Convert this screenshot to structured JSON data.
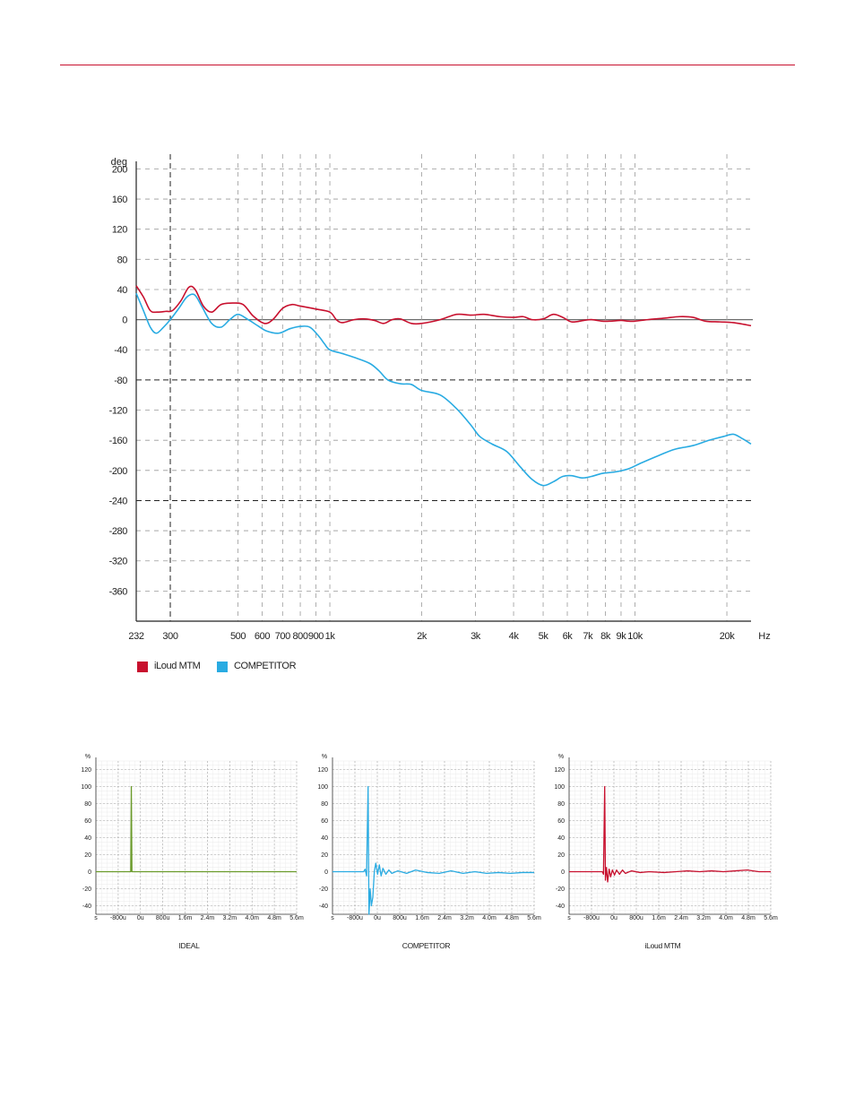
{
  "colors": {
    "accent_rule": "#c8102e",
    "iloud": "#c8102e",
    "competitor": "#29abe2",
    "ideal": "#6a9a2a",
    "zero_line": "#555555"
  },
  "chart_data": [
    {
      "type": "line",
      "title": "",
      "xscale": "log",
      "yunit": "deg",
      "xunit": "Hz",
      "xlim": [
        232,
        24000
      ],
      "ylim": [
        -400,
        210
      ],
      "yticks": [
        200,
        160,
        120,
        80,
        40,
        0,
        -40,
        -80,
        -120,
        -160,
        -200,
        -240,
        -280,
        -320,
        -360
      ],
      "ytick_labels": [
        "200",
        "160",
        "120",
        "80",
        "40",
        "0",
        "-40",
        "-80",
        "-120",
        "-160",
        "-200",
        "-240",
        "-280",
        "-320",
        "-360"
      ],
      "xticks": [
        232,
        300,
        500,
        600,
        700,
        800,
        900,
        1000,
        2000,
        3000,
        4000,
        5000,
        6000,
        7000,
        8000,
        9000,
        10000,
        20000
      ],
      "xtick_labels": [
        "232",
        "300",
        "500",
        "600",
        "700",
        "800",
        "900",
        "1k",
        "2k",
        "3k",
        "4k",
        "5k",
        "6k",
        "7k",
        "8k",
        "9k",
        "10k",
        "20k"
      ],
      "legend": "bottom-left",
      "series": [
        {
          "name": "iLoud MTM",
          "color": "#c8102e",
          "points": [
            [
              232,
              45
            ],
            [
              245,
              30
            ],
            [
              258,
              12
            ],
            [
              272,
              10
            ],
            [
              290,
              11
            ],
            [
              305,
              12
            ],
            [
              325,
              25
            ],
            [
              345,
              43
            ],
            [
              362,
              40
            ],
            [
              385,
              18
            ],
            [
              410,
              10
            ],
            [
              440,
              20
            ],
            [
              480,
              22
            ],
            [
              520,
              20
            ],
            [
              560,
              5
            ],
            [
              610,
              -5
            ],
            [
              650,
              0
            ],
            [
              700,
              15
            ],
            [
              750,
              20
            ],
            [
              800,
              18
            ],
            [
              900,
              14
            ],
            [
              1000,
              10
            ],
            [
              1050,
              0
            ],
            [
              1100,
              -4
            ],
            [
              1200,
              0
            ],
            [
              1300,
              1
            ],
            [
              1400,
              -1
            ],
            [
              1500,
              -5
            ],
            [
              1600,
              0
            ],
            [
              1700,
              1
            ],
            [
              1850,
              -5
            ],
            [
              2000,
              -5
            ],
            [
              2300,
              0
            ],
            [
              2600,
              7
            ],
            [
              2900,
              6
            ],
            [
              3200,
              7
            ],
            [
              3600,
              4
            ],
            [
              4000,
              3
            ],
            [
              4300,
              4
            ],
            [
              4600,
              0
            ],
            [
              5000,
              1
            ],
            [
              5400,
              7
            ],
            [
              5800,
              3
            ],
            [
              6200,
              -3
            ],
            [
              6800,
              -1
            ],
            [
              7200,
              0
            ],
            [
              7800,
              -2
            ],
            [
              8300,
              -2
            ],
            [
              9000,
              -1
            ],
            [
              9500,
              -2
            ],
            [
              10000,
              -2
            ],
            [
              11000,
              0
            ],
            [
              12500,
              2
            ],
            [
              14000,
              4
            ],
            [
              15500,
              3
            ],
            [
              17000,
              -2
            ],
            [
              19000,
              -3
            ],
            [
              21000,
              -4
            ],
            [
              24000,
              -8
            ]
          ]
        },
        {
          "name": "COMPETITOR",
          "color": "#29abe2",
          "points": [
            [
              232,
              35
            ],
            [
              245,
              12
            ],
            [
              258,
              -10
            ],
            [
              270,
              -18
            ],
            [
              285,
              -10
            ],
            [
              300,
              0
            ],
            [
              320,
              15
            ],
            [
              340,
              30
            ],
            [
              360,
              33
            ],
            [
              380,
              18
            ],
            [
              410,
              -5
            ],
            [
              440,
              -10
            ],
            [
              470,
              0
            ],
            [
              500,
              7
            ],
            [
              540,
              0
            ],
            [
              580,
              -8
            ],
            [
              620,
              -15
            ],
            [
              680,
              -18
            ],
            [
              740,
              -12
            ],
            [
              800,
              -9
            ],
            [
              860,
              -10
            ],
            [
              920,
              -22
            ],
            [
              960,
              -32
            ],
            [
              1000,
              -40
            ],
            [
              1100,
              -45
            ],
            [
              1200,
              -50
            ],
            [
              1350,
              -58
            ],
            [
              1450,
              -68
            ],
            [
              1550,
              -80
            ],
            [
              1700,
              -85
            ],
            [
              1850,
              -86
            ],
            [
              2000,
              -94
            ],
            [
              2300,
              -100
            ],
            [
              2600,
              -118
            ],
            [
              2900,
              -140
            ],
            [
              3100,
              -155
            ],
            [
              3400,
              -165
            ],
            [
              3800,
              -175
            ],
            [
              4200,
              -195
            ],
            [
              4600,
              -212
            ],
            [
              5000,
              -220
            ],
            [
              5400,
              -215
            ],
            [
              5800,
              -208
            ],
            [
              6200,
              -207
            ],
            [
              6700,
              -210
            ],
            [
              7200,
              -208
            ],
            [
              7800,
              -204
            ],
            [
              8600,
              -202
            ],
            [
              9500,
              -198
            ],
            [
              10500,
              -190
            ],
            [
              12000,
              -180
            ],
            [
              13500,
              -172
            ],
            [
              15500,
              -167
            ],
            [
              17500,
              -160
            ],
            [
              19500,
              -155
            ],
            [
              21000,
              -152
            ],
            [
              22500,
              -158
            ],
            [
              24000,
              -165
            ]
          ]
        }
      ]
    },
    {
      "type": "line",
      "title": "IDEAL",
      "yunit": "%",
      "xlim": [
        -1200,
        5600
      ],
      "ylim": [
        -50,
        130
      ],
      "yticks": [
        120,
        100,
        80,
        60,
        40,
        20,
        0,
        -20,
        -40
      ],
      "xtick_labels": [
        "s",
        "-800u",
        "0u",
        "800u",
        "1.6m",
        "2.4m",
        "3.2m",
        "4.0m",
        "4.8m",
        "5.6m"
      ],
      "series": [
        {
          "name": "IDEAL",
          "color": "#6a9a2a",
          "points": [
            [
              -1200,
              0
            ],
            [
              -20,
              0
            ],
            [
              0,
              100
            ],
            [
              20,
              0
            ],
            [
              5600,
              0
            ]
          ]
        }
      ]
    },
    {
      "type": "line",
      "title": "COMPETITOR",
      "yunit": "%",
      "xlim": [
        -1200,
        5600
      ],
      "ylim": [
        -50,
        130
      ],
      "yticks": [
        120,
        100,
        80,
        60,
        40,
        20,
        0,
        -20,
        -40
      ],
      "xtick_labels": [
        "s",
        "-800u",
        "0u",
        "800u",
        "1.6m",
        "2.4m",
        "3.2m",
        "4.0m",
        "4.8m",
        "5.6m"
      ],
      "series": [
        {
          "name": "COMPETITOR",
          "color": "#29abe2",
          "points": [
            [
              -1200,
              0
            ],
            [
              -150,
              0
            ],
            [
              -100,
              3
            ],
            [
              -50,
              -5
            ],
            [
              0,
              100
            ],
            [
              30,
              -50
            ],
            [
              70,
              -20
            ],
            [
              110,
              -40
            ],
            [
              160,
              -30
            ],
            [
              210,
              0
            ],
            [
              260,
              10
            ],
            [
              320,
              -3
            ],
            [
              380,
              8
            ],
            [
              440,
              -5
            ],
            [
              500,
              4
            ],
            [
              600,
              -3
            ],
            [
              700,
              2
            ],
            [
              800,
              -2
            ],
            [
              1000,
              1
            ],
            [
              1300,
              -2
            ],
            [
              1600,
              2
            ],
            [
              2000,
              -1
            ],
            [
              2400,
              -2
            ],
            [
              2800,
              1
            ],
            [
              3200,
              -2
            ],
            [
              3600,
              0
            ],
            [
              4000,
              -2
            ],
            [
              4400,
              -1
            ],
            [
              4800,
              -2
            ],
            [
              5200,
              -1
            ],
            [
              5600,
              -1
            ]
          ]
        }
      ]
    },
    {
      "type": "line",
      "title": "iLoud MTM",
      "yunit": "%",
      "xlim": [
        -1200,
        5600
      ],
      "ylim": [
        -50,
        130
      ],
      "yticks": [
        120,
        100,
        80,
        60,
        40,
        20,
        0,
        -20,
        -40
      ],
      "xtick_labels": [
        "s",
        "-800u",
        "0u",
        "800u",
        "1.6m",
        "2.4m",
        "3.2m",
        "4.0m",
        "4.8m",
        "5.6m"
      ],
      "series": [
        {
          "name": "iLoud MTM",
          "color": "#c8102e",
          "points": [
            [
              -1200,
              0
            ],
            [
              -80,
              0
            ],
            [
              -40,
              -3
            ],
            [
              0,
              100
            ],
            [
              25,
              -10
            ],
            [
              60,
              5
            ],
            [
              100,
              -12
            ],
            [
              150,
              3
            ],
            [
              200,
              -6
            ],
            [
              260,
              2
            ],
            [
              330,
              -4
            ],
            [
              400,
              2
            ],
            [
              500,
              -3
            ],
            [
              600,
              2
            ],
            [
              700,
              -2
            ],
            [
              900,
              1
            ],
            [
              1200,
              -1
            ],
            [
              1500,
              0
            ],
            [
              2000,
              -1
            ],
            [
              2400,
              0
            ],
            [
              2800,
              1
            ],
            [
              3200,
              0
            ],
            [
              3600,
              1
            ],
            [
              4000,
              0
            ],
            [
              4400,
              1
            ],
            [
              4800,
              2
            ],
            [
              5200,
              0
            ],
            [
              5600,
              0
            ]
          ]
        }
      ]
    }
  ]
}
